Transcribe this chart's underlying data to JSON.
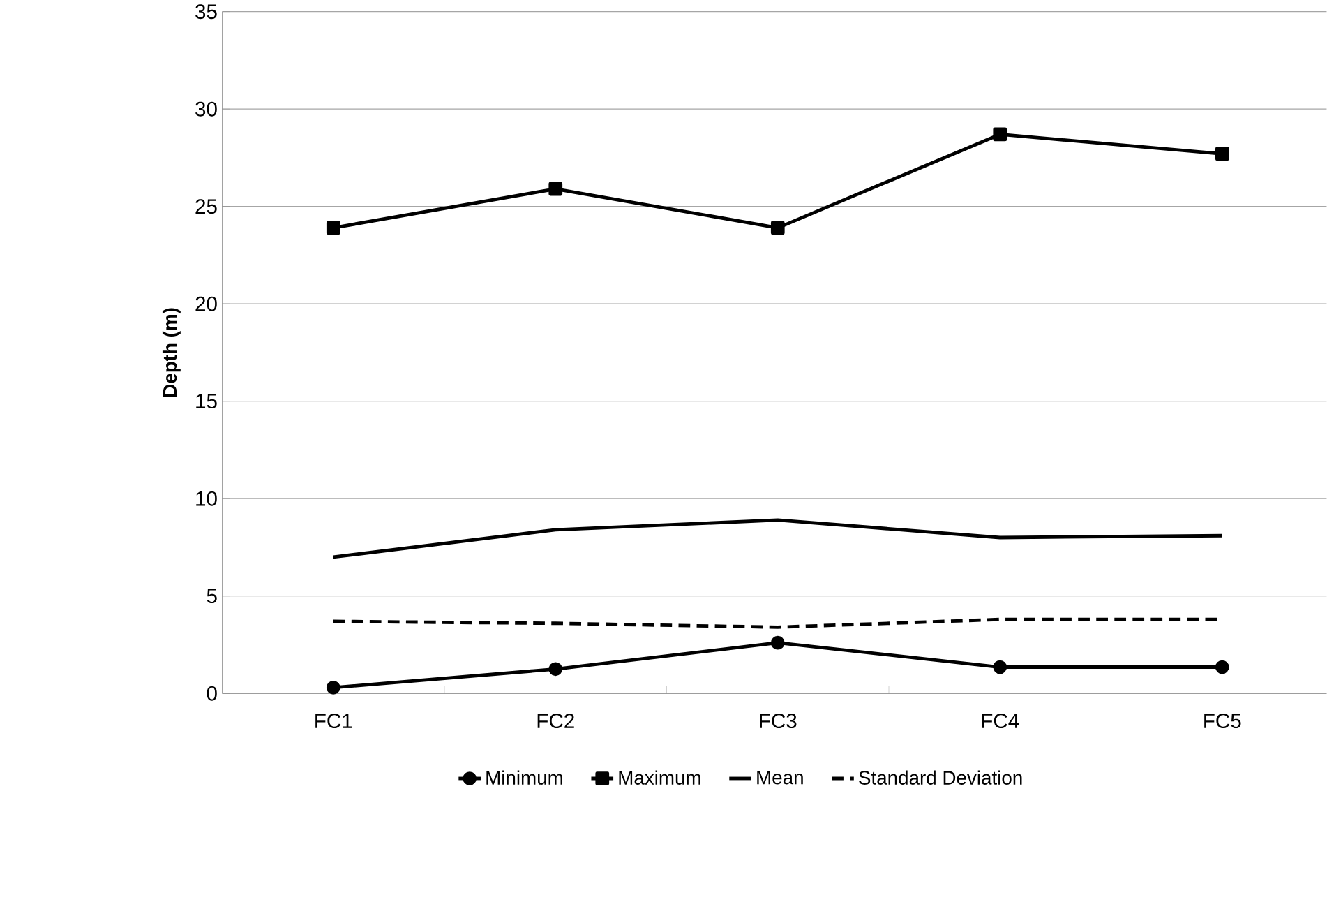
{
  "chart_data": {
    "type": "line",
    "ylabel": "Depth (m)",
    "categories": [
      "FC1",
      "FC2",
      "FC3",
      "FC4",
      "FC5"
    ],
    "series": [
      {
        "name": "Minimum",
        "color": "#000000",
        "marker": "circle",
        "line_style": "solid",
        "values": [
          0.3,
          1.25,
          2.6,
          1.35,
          1.35
        ]
      },
      {
        "name": "Maximum",
        "color": "#000000",
        "marker": "square",
        "line_style": "solid",
        "values": [
          23.9,
          25.9,
          23.9,
          28.7,
          27.7
        ]
      },
      {
        "name": "Mean",
        "color": "#000000",
        "marker": "none",
        "line_style": "solid",
        "values": [
          7.0,
          8.4,
          8.9,
          8.0,
          8.1
        ]
      },
      {
        "name": "Standard Deviation",
        "color": "#000000",
        "marker": "none",
        "line_style": "dashed",
        "values": [
          3.7,
          3.6,
          3.4,
          3.8,
          3.8
        ]
      }
    ],
    "ylim": [
      0,
      35
    ],
    "yticks": [
      0,
      5,
      10,
      15,
      20,
      25,
      30,
      35
    ],
    "grid": "y",
    "legend": "bottom"
  }
}
